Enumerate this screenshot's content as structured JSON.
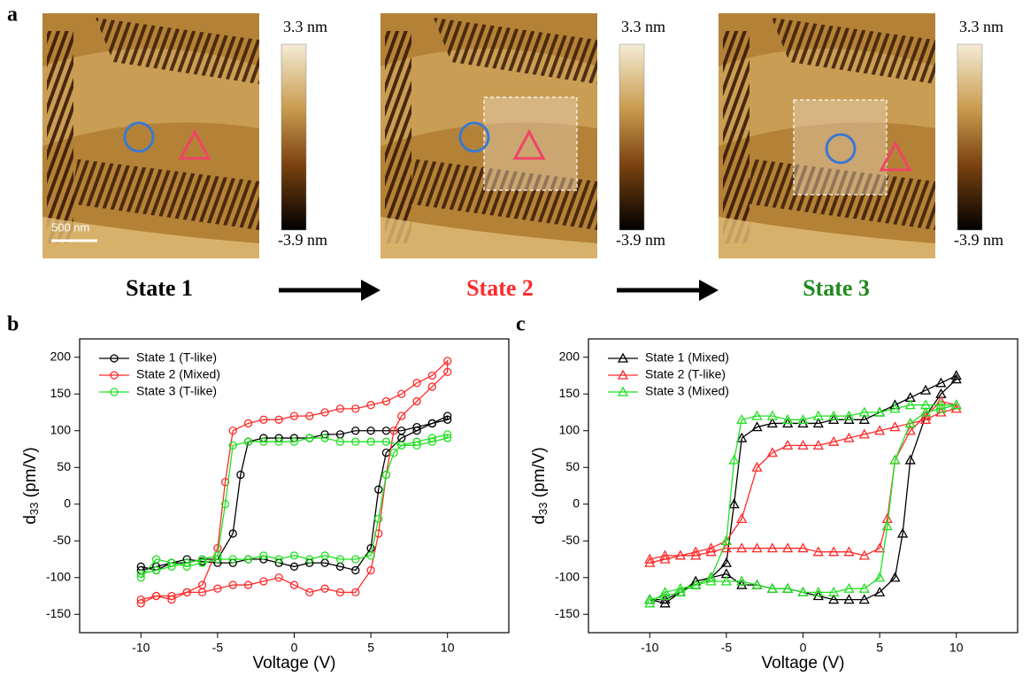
{
  "panel_a": {
    "label": "a",
    "scale_bar": "500 nm",
    "colorbar": {
      "max": "3.3 nm",
      "min": "-3.9 nm"
    },
    "states": [
      {
        "label": "State 1",
        "color": "#000000"
      },
      {
        "label": "State 2",
        "color": "#ff2a2a"
      },
      {
        "label": "State 3",
        "color": "#1f8a1f"
      }
    ]
  },
  "chart_data": [
    {
      "type": "line",
      "panel_label": "b",
      "xlabel": "Voltage (V)",
      "ylabel": [
        "d",
        "33",
        " (pm/V)"
      ],
      "xlim": [
        -14,
        14
      ],
      "ylim": [
        -175,
        225
      ],
      "xticks": [
        -10,
        -5,
        0,
        5,
        10
      ],
      "yticks": [
        -150,
        -100,
        -50,
        0,
        50,
        100,
        150,
        200
      ],
      "legend": "upper left",
      "marker": "circle",
      "series": [
        {
          "name": "State 1 (T-like)",
          "color": "#000000",
          "x": [
            -10,
            -9,
            -8,
            -7,
            -6,
            -5,
            -4,
            -3,
            -2,
            -1,
            0,
            1,
            2,
            3,
            4,
            5,
            5.5,
            6,
            7,
            8,
            9,
            10,
            10,
            9,
            8,
            7,
            6,
            5,
            4,
            3,
            2,
            1,
            0,
            -1,
            -2,
            -3,
            -3.5,
            -4,
            -5,
            -6,
            -7,
            -8,
            -9,
            -10
          ],
          "values": [
            -85,
            -90,
            -80,
            -75,
            -78,
            -80,
            -80,
            -75,
            -75,
            -80,
            -85,
            -80,
            -80,
            -85,
            -90,
            -60,
            20,
            70,
            90,
            100,
            110,
            115,
            120,
            110,
            105,
            100,
            100,
            100,
            100,
            95,
            95,
            90,
            90,
            90,
            90,
            85,
            40,
            -40,
            -75,
            -75,
            -80,
            -80,
            -85,
            -90
          ]
        },
        {
          "name": "State 2 (Mixed)",
          "color": "#ff2a2a",
          "x": [
            -10,
            -9,
            -8,
            -7,
            -6,
            -5,
            -4,
            -3,
            -2,
            -1,
            0,
            1,
            2,
            3,
            4,
            5,
            5.5,
            6,
            6.5,
            7,
            8,
            9,
            10,
            10,
            9,
            8,
            7,
            6,
            5,
            4,
            3,
            2,
            1,
            0,
            -1,
            -2,
            -3,
            -4,
            -4.5,
            -5,
            -6,
            -7,
            -8,
            -9,
            -10
          ],
          "values": [
            -135,
            -125,
            -130,
            -120,
            -120,
            -115,
            -110,
            -110,
            -105,
            -100,
            -110,
            -120,
            -115,
            -120,
            -120,
            -90,
            -40,
            40,
            100,
            120,
            140,
            160,
            180,
            195,
            175,
            165,
            150,
            140,
            135,
            130,
            130,
            125,
            120,
            120,
            115,
            115,
            110,
            100,
            30,
            -60,
            -110,
            -120,
            -125,
            -125,
            -130
          ]
        },
        {
          "name": "State 3 (T-like)",
          "color": "#22e022",
          "x": [
            -10,
            -9,
            -8,
            -7,
            -6,
            -5,
            -4,
            -3,
            -2,
            -1,
            0,
            1,
            2,
            3,
            4,
            5,
            5.5,
            6,
            6.5,
            7,
            8,
            9,
            10,
            10,
            9,
            8,
            7,
            6,
            5,
            4,
            3,
            2,
            1,
            0,
            -1,
            -2,
            -3,
            -4,
            -4.5,
            -5,
            -6,
            -7,
            -8,
            -9,
            -10
          ],
          "values": [
            -100,
            -75,
            -80,
            -85,
            -80,
            -75,
            -75,
            -75,
            -70,
            -75,
            -70,
            -75,
            -70,
            -75,
            -75,
            -70,
            -20,
            40,
            70,
            80,
            85,
            90,
            95,
            90,
            85,
            80,
            80,
            85,
            85,
            85,
            85,
            90,
            90,
            85,
            85,
            85,
            85,
            80,
            0,
            -70,
            -75,
            -80,
            -85,
            -90,
            -95
          ]
        }
      ]
    },
    {
      "type": "line",
      "panel_label": "c",
      "xlabel": "Voltage (V)",
      "ylabel": [
        "d",
        "33",
        " (pm/V)"
      ],
      "xlim": [
        -14,
        14
      ],
      "ylim": [
        -175,
        225
      ],
      "xticks": [
        -10,
        -5,
        0,
        5,
        10
      ],
      "yticks": [
        -150,
        -100,
        -50,
        0,
        50,
        100,
        150,
        200
      ],
      "legend": "upper left",
      "marker": "triangle",
      "series": [
        {
          "name": "State 1 (Mixed)",
          "color": "#000000",
          "x": [
            -10,
            -9,
            -8,
            -7,
            -6,
            -5,
            -4,
            -3,
            -2,
            -1,
            0,
            1,
            2,
            3,
            4,
            5,
            6,
            6.5,
            7,
            8,
            9,
            10,
            10,
            9,
            8,
            7,
            6,
            5,
            4,
            3,
            2,
            1,
            0,
            -1,
            -2,
            -3,
            -4,
            -4.5,
            -5,
            -6,
            -7,
            -8,
            -9,
            -10
          ],
          "values": [
            -130,
            -135,
            -120,
            -105,
            -100,
            -95,
            -110,
            -110,
            -115,
            -115,
            -120,
            -125,
            -130,
            -130,
            -130,
            -120,
            -100,
            -40,
            60,
            120,
            150,
            170,
            175,
            165,
            155,
            145,
            135,
            125,
            115,
            115,
            115,
            110,
            110,
            110,
            110,
            105,
            90,
            0,
            -80,
            -100,
            -110,
            -120,
            -130,
            -130
          ]
        },
        {
          "name": "State 2 (T-like)",
          "color": "#ff2a2a",
          "x": [
            -10,
            -9,
            -8,
            -7,
            -6,
            -5,
            -4,
            -3,
            -2,
            -1,
            0,
            1,
            2,
            3,
            4,
            5,
            5.5,
            6,
            7,
            8,
            9,
            10,
            10,
            9,
            8,
            7,
            6,
            5,
            4,
            3,
            2,
            1,
            0,
            -1,
            -2,
            -3,
            -4,
            -5,
            -6,
            -7,
            -8,
            -9,
            -10
          ],
          "values": [
            -75,
            -70,
            -70,
            -70,
            -65,
            -60,
            -60,
            -60,
            -60,
            -60,
            -60,
            -65,
            -65,
            -65,
            -70,
            -60,
            -20,
            60,
            100,
            120,
            140,
            135,
            130,
            125,
            115,
            110,
            105,
            100,
            95,
            90,
            85,
            80,
            80,
            80,
            70,
            50,
            -20,
            -50,
            -60,
            -65,
            -70,
            -75,
            -80
          ]
        },
        {
          "name": "State 3 (Mixed)",
          "color": "#22e022",
          "x": [
            -10,
            -9,
            -8,
            -7,
            -6,
            -5,
            -4,
            -3,
            -2,
            -1,
            0,
            1,
            2,
            3,
            4,
            5,
            5.5,
            6,
            7,
            8,
            9,
            10,
            10,
            9,
            8,
            7,
            6,
            5,
            4,
            3,
            2,
            1,
            0,
            -1,
            -2,
            -3,
            -4,
            -4.5,
            -5,
            -6,
            -7,
            -8,
            -9,
            -10
          ],
          "values": [
            -135,
            -120,
            -115,
            -110,
            -105,
            -105,
            -105,
            -110,
            -115,
            -115,
            -120,
            -120,
            -120,
            -115,
            -115,
            -100,
            -30,
            60,
            110,
            125,
            130,
            135,
            135,
            135,
            135,
            135,
            130,
            125,
            125,
            120,
            120,
            120,
            115,
            115,
            120,
            120,
            115,
            60,
            -50,
            -100,
            -110,
            -120,
            -125,
            -130
          ]
        }
      ]
    }
  ]
}
